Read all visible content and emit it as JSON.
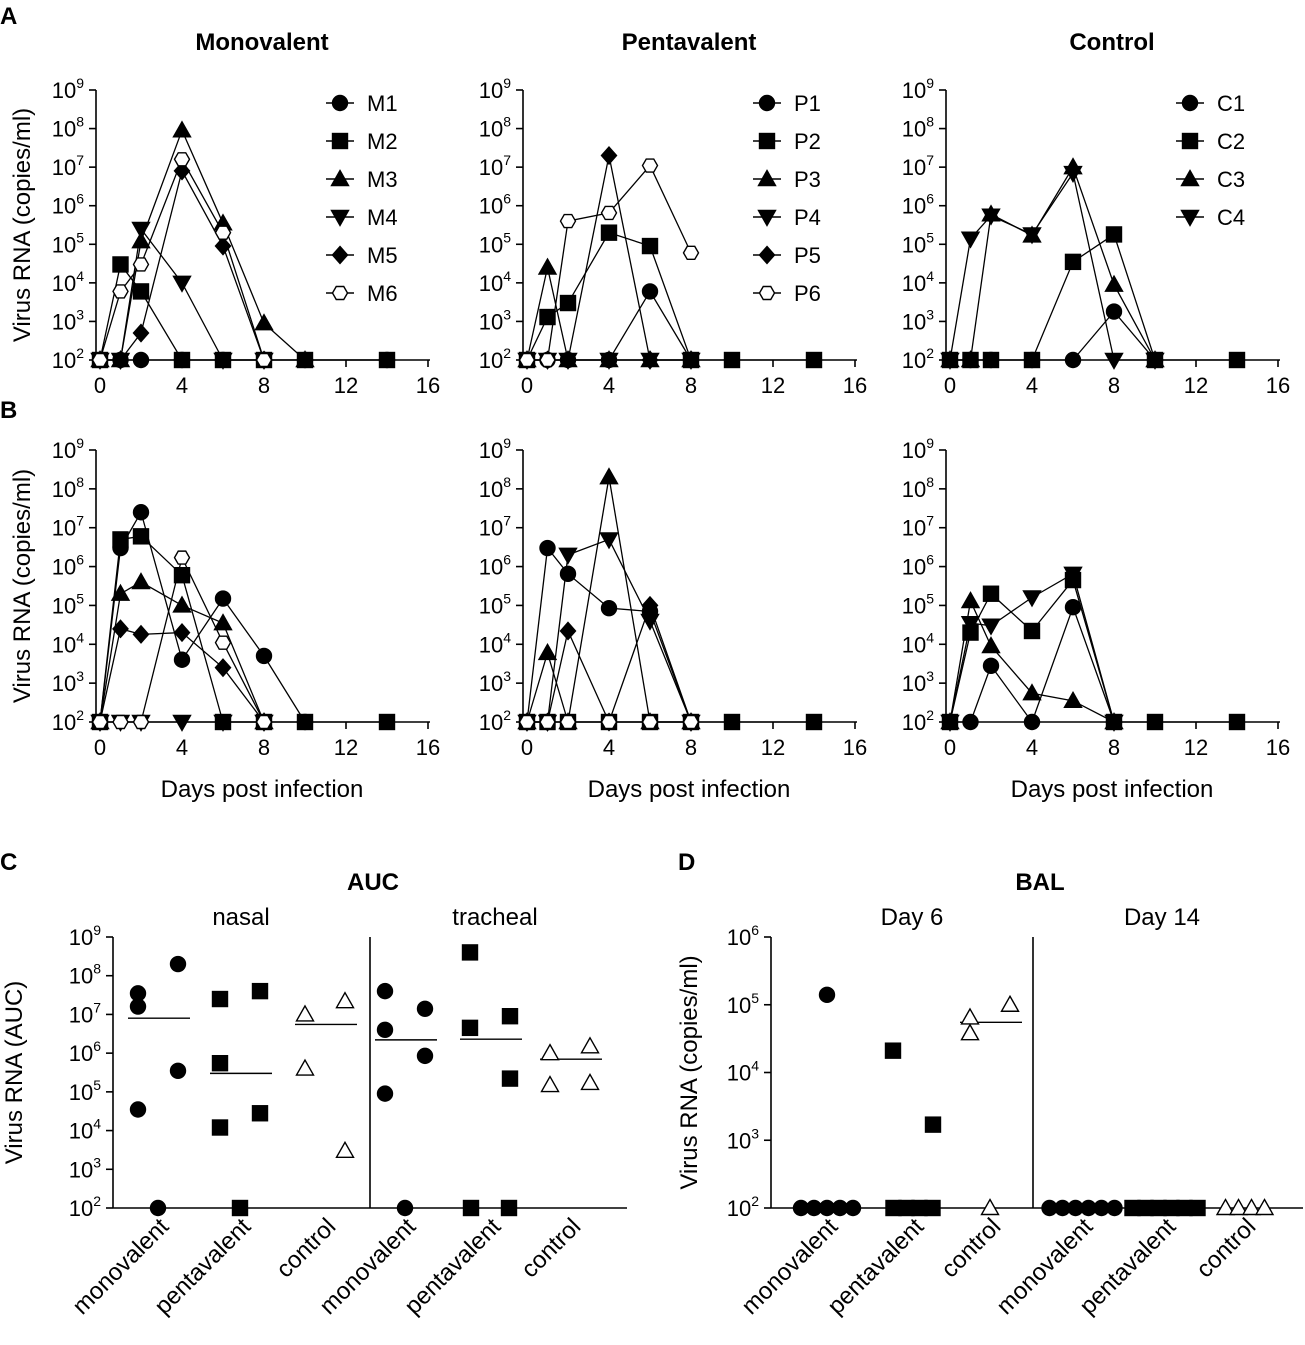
{
  "panel_letters": [
    "A",
    "B",
    "C",
    "D"
  ],
  "chart_data": [
    {
      "id": "A-mono",
      "panel": "A",
      "type": "line",
      "title": "Monovalent",
      "ylabel": "Virus RNA (copies/ml)",
      "xlabel": "",
      "yscale": "log10",
      "ylim": [
        100,
        1000000000
      ],
      "xlim": [
        0,
        16
      ],
      "xticks": [
        "0",
        "4",
        "8",
        "12",
        "16"
      ],
      "xtick_values": [
        0,
        4,
        8,
        12,
        16
      ],
      "ytick_base": "10",
      "ytick_exponents": [
        "2",
        "3",
        "4",
        "5",
        "6",
        "7",
        "8",
        "9"
      ],
      "legend_position": "top-right",
      "series": [
        {
          "name": "M1",
          "marker": "circle",
          "x": [
            0,
            1,
            2,
            4,
            6,
            8,
            10,
            14
          ],
          "y": [
            100,
            100,
            100,
            100,
            100,
            100,
            100,
            100
          ]
        },
        {
          "name": "M2",
          "marker": "square",
          "x": [
            0,
            1,
            2,
            4,
            6,
            8,
            10,
            14
          ],
          "y": [
            100,
            30000,
            6000,
            100,
            100,
            100,
            100,
            100
          ]
        },
        {
          "name": "M3",
          "marker": "triangle",
          "x": [
            0,
            1,
            2,
            4,
            6,
            8,
            10
          ],
          "y": [
            100,
            100,
            120000,
            90000000,
            350000,
            900,
            100
          ]
        },
        {
          "name": "M4",
          "marker": "triangle-down",
          "x": [
            0,
            1,
            2,
            4,
            6,
            8
          ],
          "y": [
            100,
            100,
            250000,
            10000,
            100,
            100
          ]
        },
        {
          "name": "M5",
          "marker": "diamond",
          "x": [
            0,
            1,
            2,
            4,
            6,
            8
          ],
          "y": [
            100,
            100,
            500,
            8000000,
            90000,
            100
          ]
        },
        {
          "name": "M6",
          "marker": "hexagon-open",
          "x": [
            0,
            1,
            2,
            4,
            6,
            8
          ],
          "y": [
            100,
            6000,
            30000,
            16000000,
            200000,
            100
          ]
        }
      ]
    },
    {
      "id": "A-penta",
      "panel": "A",
      "type": "line",
      "title": "Pentavalent",
      "ylabel": "",
      "xlabel": "",
      "yscale": "log10",
      "ylim": [
        100,
        1000000000
      ],
      "xlim": [
        0,
        16
      ],
      "xticks": [
        "0",
        "4",
        "8",
        "12",
        "16"
      ],
      "xtick_values": [
        0,
        4,
        8,
        12,
        16
      ],
      "ytick_base": "10",
      "ytick_exponents": [
        "2",
        "3",
        "4",
        "5",
        "6",
        "7",
        "8",
        "9"
      ],
      "legend_position": "top-right",
      "series": [
        {
          "name": "P1",
          "marker": "circle",
          "x": [
            0,
            1,
            2,
            4,
            6,
            8
          ],
          "y": [
            100,
            100,
            100,
            100,
            6000,
            100
          ]
        },
        {
          "name": "P2",
          "marker": "square",
          "x": [
            0,
            1,
            2,
            4,
            6,
            8,
            10,
            14
          ],
          "y": [
            100,
            1300,
            3000,
            200000,
            90000,
            100,
            100,
            100
          ]
        },
        {
          "name": "P3",
          "marker": "triangle",
          "x": [
            0,
            1,
            2,
            4,
            6,
            8
          ],
          "y": [
            100,
            25000,
            100,
            100,
            100,
            100
          ]
        },
        {
          "name": "P4",
          "marker": "triangle-down",
          "x": [
            0,
            1,
            2,
            4,
            6,
            8
          ],
          "y": [
            100,
            100,
            100,
            100,
            100,
            100
          ]
        },
        {
          "name": "P5",
          "marker": "diamond",
          "x": [
            0,
            1,
            2,
            4,
            6,
            8
          ],
          "y": [
            100,
            100,
            100,
            20000000,
            100,
            100
          ]
        },
        {
          "name": "P6",
          "marker": "hexagon-open",
          "x": [
            0,
            1,
            2,
            4,
            6,
            8
          ],
          "y": [
            100,
            100,
            400000,
            650000,
            11000000,
            60000
          ]
        }
      ]
    },
    {
      "id": "A-ctrl",
      "panel": "A",
      "type": "line",
      "title": "Control",
      "ylabel": "",
      "xlabel": "",
      "yscale": "log10",
      "ylim": [
        100,
        1000000000
      ],
      "xlim": [
        0,
        16
      ],
      "xticks": [
        "0",
        "4",
        "8",
        "12",
        "16"
      ],
      "xtick_values": [
        0,
        4,
        8,
        12,
        16
      ],
      "ytick_base": "10",
      "ytick_exponents": [
        "2",
        "3",
        "4",
        "5",
        "6",
        "7",
        "8",
        "9"
      ],
      "legend_position": "top-right",
      "series": [
        {
          "name": "C1",
          "marker": "circle",
          "x": [
            0,
            1,
            2,
            4,
            6,
            8,
            10
          ],
          "y": [
            100,
            100,
            100,
            100,
            100,
            1800,
            100
          ]
        },
        {
          "name": "C2",
          "marker": "square",
          "x": [
            0,
            1,
            2,
            4,
            6,
            8,
            10,
            14
          ],
          "y": [
            100,
            100,
            100,
            100,
            35000,
            180000,
            100,
            100
          ]
        },
        {
          "name": "C3",
          "marker": "triangle",
          "x": [
            0,
            1,
            2,
            4,
            6,
            8,
            10
          ],
          "y": [
            100,
            100,
            600000,
            170000,
            10000000,
            9000,
            100
          ]
        },
        {
          "name": "C4",
          "marker": "triangle-down",
          "x": [
            0,
            1,
            2,
            4,
            6,
            8,
            10
          ],
          "y": [
            100,
            140000,
            550000,
            180000,
            7000000,
            100,
            100
          ]
        }
      ]
    },
    {
      "id": "B-mono",
      "panel": "B",
      "type": "line",
      "title": "",
      "ylabel": "Virus RNA (copies/ml)",
      "xlabel": "Days post infection",
      "yscale": "log10",
      "ylim": [
        100,
        1000000000
      ],
      "xlim": [
        0,
        16
      ],
      "xticks": [
        "0",
        "4",
        "8",
        "12",
        "16"
      ],
      "xtick_values": [
        0,
        4,
        8,
        12,
        16
      ],
      "ytick_base": "10",
      "ytick_exponents": [
        "2",
        "3",
        "4",
        "5",
        "6",
        "7",
        "8",
        "9"
      ],
      "series": [
        {
          "name": "M1",
          "marker": "circle",
          "x": [
            0,
            1,
            2,
            4,
            6,
            8,
            10
          ],
          "y": [
            100,
            3000000,
            25000000,
            4000,
            150000,
            5000,
            100
          ]
        },
        {
          "name": "M2",
          "marker": "square",
          "x": [
            0,
            1,
            2,
            4,
            6,
            8,
            10,
            14
          ],
          "y": [
            100,
            5000000,
            6000000,
            600000,
            100,
            100,
            100,
            100
          ]
        },
        {
          "name": "M3",
          "marker": "triangle",
          "x": [
            0,
            1,
            2,
            4,
            6,
            8
          ],
          "y": [
            100,
            200000,
            400000,
            100000,
            35000,
            100
          ]
        },
        {
          "name": "M4",
          "marker": "triangle-down",
          "x": [
            0,
            1,
            2,
            4,
            6,
            8
          ],
          "y": [
            100,
            100,
            100,
            100,
            100,
            100
          ]
        },
        {
          "name": "M5",
          "marker": "diamond",
          "x": [
            0,
            1,
            2,
            4,
            6,
            8
          ],
          "y": [
            100,
            25000,
            18000,
            20000,
            2500,
            100
          ]
        },
        {
          "name": "M6",
          "marker": "hexagon-open",
          "x": [
            0,
            1,
            2,
            4,
            6,
            8
          ],
          "y": [
            100,
            100,
            100,
            1700000,
            11000,
            100
          ]
        }
      ]
    },
    {
      "id": "B-penta",
      "panel": "B",
      "type": "line",
      "title": "",
      "ylabel": "",
      "xlabel": "Days post infection",
      "yscale": "log10",
      "ylim": [
        100,
        1000000000
      ],
      "xlim": [
        0,
        16
      ],
      "xticks": [
        "0",
        "4",
        "8",
        "12",
        "16"
      ],
      "xtick_values": [
        0,
        4,
        8,
        12,
        16
      ],
      "ytick_base": "10",
      "ytick_exponents": [
        "2",
        "3",
        "4",
        "5",
        "6",
        "7",
        "8",
        "9"
      ],
      "series": [
        {
          "name": "P1",
          "marker": "circle",
          "x": [
            0,
            1,
            2,
            4,
            6,
            8
          ],
          "y": [
            100,
            3000000,
            650000,
            85000,
            70000,
            100
          ]
        },
        {
          "name": "P2",
          "marker": "square",
          "x": [
            0,
            1,
            2,
            4,
            6,
            8,
            10,
            14
          ],
          "y": [
            100,
            100,
            100,
            100,
            100,
            100,
            100,
            100
          ]
        },
        {
          "name": "P3",
          "marker": "triangle",
          "x": [
            0,
            1,
            2,
            4,
            6,
            8
          ],
          "y": [
            100,
            6000,
            100,
            200000000,
            100,
            100
          ]
        },
        {
          "name": "P4",
          "marker": "triangle-down",
          "x": [
            0,
            1,
            2,
            4,
            6,
            8
          ],
          "y": [
            100,
            100,
            2000000,
            5000000,
            40000,
            100
          ]
        },
        {
          "name": "P5",
          "marker": "diamond",
          "x": [
            0,
            1,
            2,
            4,
            6,
            8
          ],
          "y": [
            100,
            100,
            22000,
            100,
            100000,
            100
          ]
        },
        {
          "name": "P6",
          "marker": "hexagon-open",
          "x": [
            0,
            1,
            2,
            4,
            6,
            8
          ],
          "y": [
            100,
            100,
            100,
            100,
            100,
            100
          ]
        }
      ]
    },
    {
      "id": "B-ctrl",
      "panel": "B",
      "type": "line",
      "title": "",
      "ylabel": "",
      "xlabel": "Days post infection",
      "yscale": "log10",
      "ylim": [
        100,
        1000000000
      ],
      "xlim": [
        0,
        16
      ],
      "xticks": [
        "0",
        "4",
        "8",
        "12",
        "16"
      ],
      "xtick_values": [
        0,
        4,
        8,
        12,
        16
      ],
      "ytick_base": "10",
      "ytick_exponents": [
        "2",
        "3",
        "4",
        "5",
        "6",
        "7",
        "8",
        "9"
      ],
      "series": [
        {
          "name": "C1",
          "marker": "circle",
          "x": [
            0,
            1,
            2,
            4,
            6,
            8
          ],
          "y": [
            100,
            100,
            2800,
            100,
            90000,
            100
          ]
        },
        {
          "name": "C2",
          "marker": "square",
          "x": [
            0,
            1,
            2,
            4,
            6,
            8,
            10,
            14
          ],
          "y": [
            100,
            20000,
            200000,
            22000,
            450000,
            100,
            100,
            100
          ]
        },
        {
          "name": "C3",
          "marker": "triangle",
          "x": [
            0,
            1,
            2,
            4,
            6,
            8
          ],
          "y": [
            100,
            130000,
            9000,
            550,
            350,
            100
          ]
        },
        {
          "name": "C4",
          "marker": "triangle-down",
          "x": [
            0,
            1,
            2,
            4,
            6,
            8
          ],
          "y": [
            100,
            35000,
            30000,
            160000,
            650000,
            100
          ]
        }
      ]
    },
    {
      "id": "C",
      "panel": "C",
      "type": "scatter",
      "title": "AUC",
      "ylabel": "Virus RNA  (AUC)",
      "yscale": "log10",
      "ylim": [
        100,
        1000000000
      ],
      "ytick_base": "10",
      "ytick_exponents": [
        "2",
        "3",
        "4",
        "5",
        "6",
        "7",
        "8",
        "9"
      ],
      "section_labels": [
        "nasal",
        "tracheal"
      ],
      "categories": [
        "monovalent",
        "pentavalent",
        "control",
        "monovalent",
        "pentavalent",
        "control"
      ],
      "groups": [
        {
          "section": "nasal",
          "name": "monovalent",
          "marker": "circle",
          "median": 8000000,
          "values": [
            35000000,
            200000000,
            16000000,
            350000,
            35000,
            100
          ]
        },
        {
          "section": "nasal",
          "name": "pentavalent",
          "marker": "square",
          "median": 300000,
          "values": [
            25000000,
            40000000,
            550000,
            28000,
            12000,
            100
          ]
        },
        {
          "section": "nasal",
          "name": "control",
          "marker": "triangle-open",
          "median": 5500000,
          "values": [
            10000000,
            22000000,
            400000,
            3000
          ]
        },
        {
          "section": "tracheal",
          "name": "monovalent",
          "marker": "circle",
          "median": 2200000,
          "values": [
            40000000,
            14000000,
            4000000,
            850000,
            90000,
            100
          ]
        },
        {
          "section": "tracheal",
          "name": "pentavalent",
          "marker": "square",
          "median": 2300000,
          "values": [
            400000000,
            9000000,
            4500000,
            220000,
            100,
            100
          ]
        },
        {
          "section": "tracheal",
          "name": "control",
          "marker": "triangle-open",
          "median": 700000,
          "values": [
            1000000,
            1500000,
            150000,
            170000
          ]
        }
      ]
    },
    {
      "id": "D",
      "panel": "D",
      "type": "scatter",
      "title": "BAL",
      "ylabel": "Virus RNA (copies/ml)",
      "yscale": "log10",
      "ylim": [
        100,
        1000000
      ],
      "ytick_base": "10",
      "ytick_exponents": [
        "2",
        "3",
        "4",
        "5",
        "6"
      ],
      "section_labels": [
        "Day 6",
        "Day 14"
      ],
      "categories": [
        "monovalent",
        "pentavalent",
        "control",
        "monovalent",
        "pentavalent",
        "control"
      ],
      "groups": [
        {
          "section": "Day 6",
          "name": "monovalent",
          "marker": "circle",
          "values": [
            140000,
            100,
            100,
            100,
            100,
            100
          ]
        },
        {
          "section": "Day 6",
          "name": "pentavalent",
          "marker": "square",
          "values": [
            21000,
            1700,
            100,
            100,
            100,
            100
          ]
        },
        {
          "section": "Day 6",
          "name": "control",
          "marker": "triangle-open",
          "median": 55000,
          "values": [
            65000,
            100000,
            38000,
            100
          ]
        },
        {
          "section": "Day 14",
          "name": "monovalent",
          "marker": "circle",
          "values": [
            100,
            100,
            100,
            100,
            100,
            100
          ]
        },
        {
          "section": "Day 14",
          "name": "pentavalent",
          "marker": "square",
          "values": [
            100,
            100,
            100,
            100,
            100,
            100
          ]
        },
        {
          "section": "Day 14",
          "name": "control",
          "marker": "triangle-open",
          "values": [
            100,
            100,
            100,
            100
          ]
        }
      ]
    }
  ]
}
